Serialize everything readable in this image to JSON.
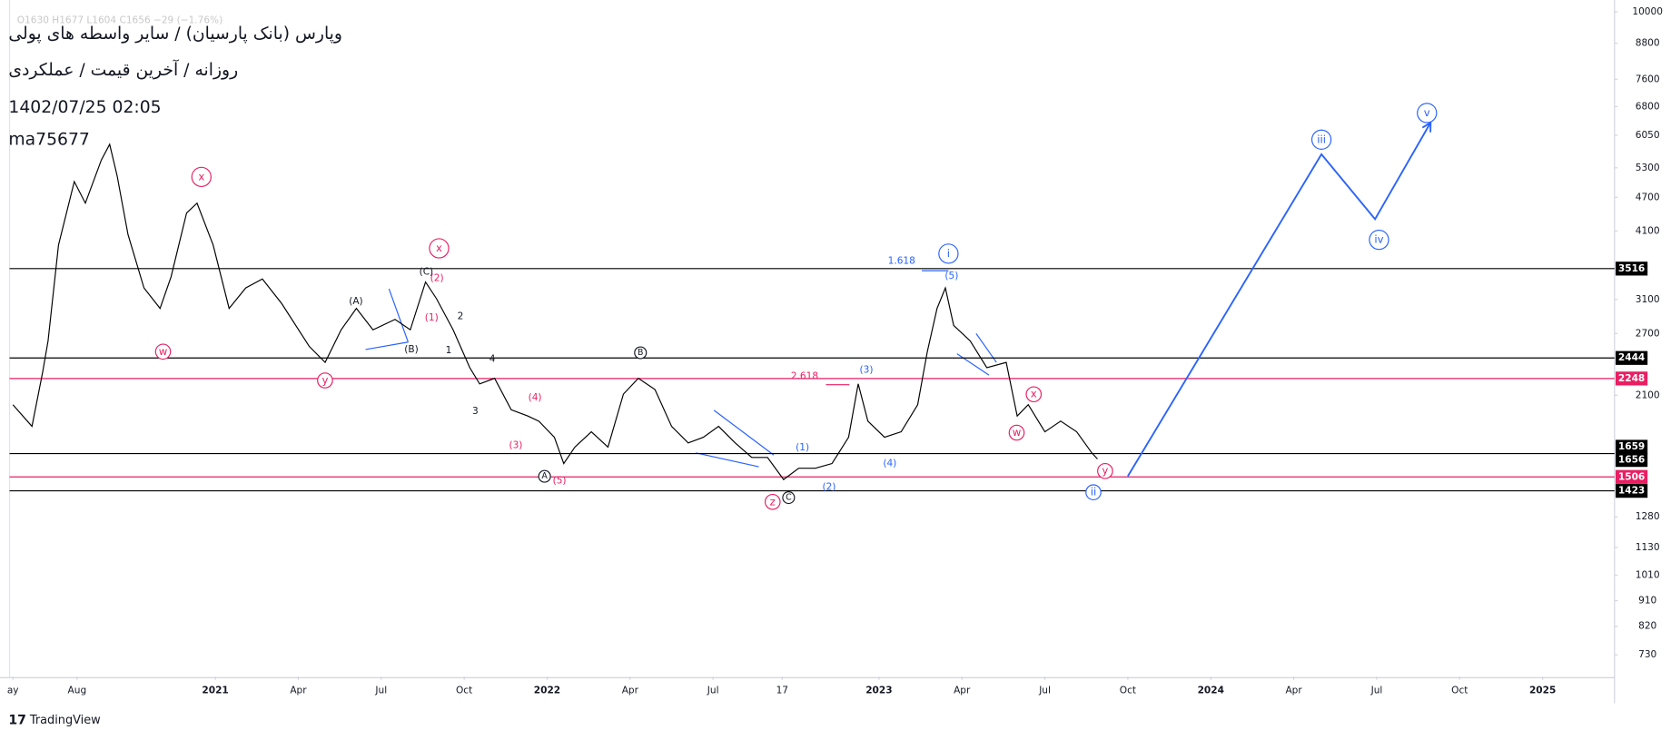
{
  "header": {
    "ohlc": "O1630 H1677 L1604 C1656 −29 (−1.76%)",
    "title": "وپارس (بانک پارسیان) / سایر واسطه های پولی",
    "subtitle": "روزانه / آخرین قیمت / عملکردی",
    "datetime": "1402/07/25 02:05",
    "author": "ma75677"
  },
  "footer": {
    "brand": "TradingView"
  },
  "chart_data": {
    "type": "line",
    "log_scale": true,
    "x": [
      4.68,
      5.37,
      5.75,
      5.95,
      6.33,
      6.9,
      7.3,
      7.88,
      8.18,
      8.45,
      8.84,
      9.42,
      10.0,
      10.4,
      10.96,
      11.34,
      11.92,
      12.5,
      13.1,
      13.7,
      14.4,
      15.4,
      15.97,
      16.55,
      17.1,
      17.7,
      18.5,
      19.05,
      19.6,
      20.0,
      20.6,
      21.2,
      21.56,
      22.1,
      22.7,
      23.3,
      23.7,
      24.26,
      24.6,
      25.0,
      25.6,
      26.2,
      26.76,
      27.3,
      27.9,
      28.5,
      29.1,
      29.65,
      30.2,
      30.8,
      31.4,
      31.97,
      32.55,
      33.1,
      33.7,
      34.3,
      34.9,
      35.25,
      35.6,
      36.2,
      36.8,
      37.4,
      37.75,
      38.1,
      38.4,
      38.7,
      39.3,
      39.9,
      40.6,
      41.0,
      41.4,
      42.0,
      42.57,
      43.15,
      43.7,
      43.9
    ],
    "series": [
      {
        "color": "#000000",
        "values": [
          2020,
          1850,
          2300,
          2620,
          3870,
          5010,
          4590,
          5470,
          5830,
          5130,
          4040,
          3250,
          2990,
          3400,
          4410,
          4590,
          3870,
          2990,
          3250,
          3370,
          3050,
          2560,
          2400,
          2740,
          2990,
          2740,
          2860,
          2740,
          3330,
          3110,
          2740,
          2350,
          2200,
          2250,
          1980,
          1930,
          1890,
          1770,
          1590,
          1700,
          1810,
          1700,
          2110,
          2250,
          2150,
          1850,
          1730,
          1770,
          1850,
          1730,
          1630,
          1630,
          1490,
          1560,
          1560,
          1590,
          1770,
          2200,
          1890,
          1770,
          1810,
          2020,
          2510,
          2990,
          3250,
          2790,
          2620,
          2350,
          2400,
          1930,
          2020,
          1810,
          1890,
          1810,
          1660,
          1620
        ]
      }
    ],
    "projection": {
      "color": "#2962ff",
      "x": [
        45.0,
        52.0,
        53.94,
        55.95
      ],
      "values": [
        1510,
        5600,
        4300,
        6370
      ]
    },
    "levels": [
      {
        "value": 3516,
        "color": "#000000",
        "line": true
      },
      {
        "value": 2444,
        "color": "#000000",
        "line": true
      },
      {
        "value": 2248,
        "color": "#e91e63",
        "line": true
      },
      {
        "value": 1659,
        "color": "#000000",
        "line": false
      },
      {
        "value": 1656,
        "color": "#000000",
        "line": true
      },
      {
        "value": 1506,
        "color": "#e91e63",
        "line": true
      },
      {
        "value": 1423,
        "color": "#000000",
        "line": true
      }
    ],
    "xlim": [
      4.56,
      62.6
    ],
    "xticks": [
      {
        "value": 4.68,
        "label": "ay"
      },
      {
        "value": 7,
        "label": "Aug"
      },
      {
        "value": 12,
        "label": "2021"
      },
      {
        "value": 15,
        "label": "Apr"
      },
      {
        "value": 18,
        "label": "Jul"
      },
      {
        "value": 21,
        "label": "Oct"
      },
      {
        "value": 24,
        "label": "2022"
      },
      {
        "value": 27,
        "label": "Apr"
      },
      {
        "value": 30,
        "label": "Jul"
      },
      {
        "value": 32.5,
        "label": "17"
      },
      {
        "value": 36,
        "label": "2023"
      },
      {
        "value": 39,
        "label": "Apr"
      },
      {
        "value": 42,
        "label": "Jul"
      },
      {
        "value": 45,
        "label": "Oct"
      },
      {
        "value": 48,
        "label": "2024"
      },
      {
        "value": 51,
        "label": "Apr"
      },
      {
        "value": 54,
        "label": "Jul"
      },
      {
        "value": 57,
        "label": "Oct"
      },
      {
        "value": 60,
        "label": "2025"
      }
    ],
    "ylim": [
      668,
      10490
    ],
    "yticks": [
      10000,
      8800,
      7600,
      6800,
      6050,
      5300,
      4700,
      4100,
      3100,
      2700,
      2100,
      1280,
      1130,
      1010,
      910,
      820,
      730
    ],
    "annotations": [
      {
        "text": "x"
      },
      {
        "text": "w"
      },
      {
        "text": "y"
      },
      {
        "text": "x"
      },
      {
        "text": "(C)"
      },
      {
        "text": "(2)"
      },
      {
        "text": "(1)"
      },
      {
        "text": "2"
      },
      {
        "text": "1"
      },
      {
        "text": "(A)"
      },
      {
        "text": "(B)"
      },
      {
        "text": "4"
      },
      {
        "text": "3"
      },
      {
        "text": "(4)"
      },
      {
        "text": "(3)"
      },
      {
        "text": "(5)"
      },
      {
        "text": "A"
      },
      {
        "text": "B"
      },
      {
        "text": "z"
      },
      {
        "text": "C"
      },
      {
        "text": "(1)"
      },
      {
        "text": "(2)"
      },
      {
        "text": "(3)"
      },
      {
        "text": "(4)"
      },
      {
        "text": "(5)"
      },
      {
        "text": "1.618"
      },
      {
        "text": "i"
      },
      {
        "text": "2.618"
      },
      {
        "text": "x"
      },
      {
        "text": "w"
      },
      {
        "text": "y"
      },
      {
        "text": "ii"
      },
      {
        "text": "iii"
      },
      {
        "text": "iv"
      },
      {
        "text": "v"
      }
    ]
  }
}
